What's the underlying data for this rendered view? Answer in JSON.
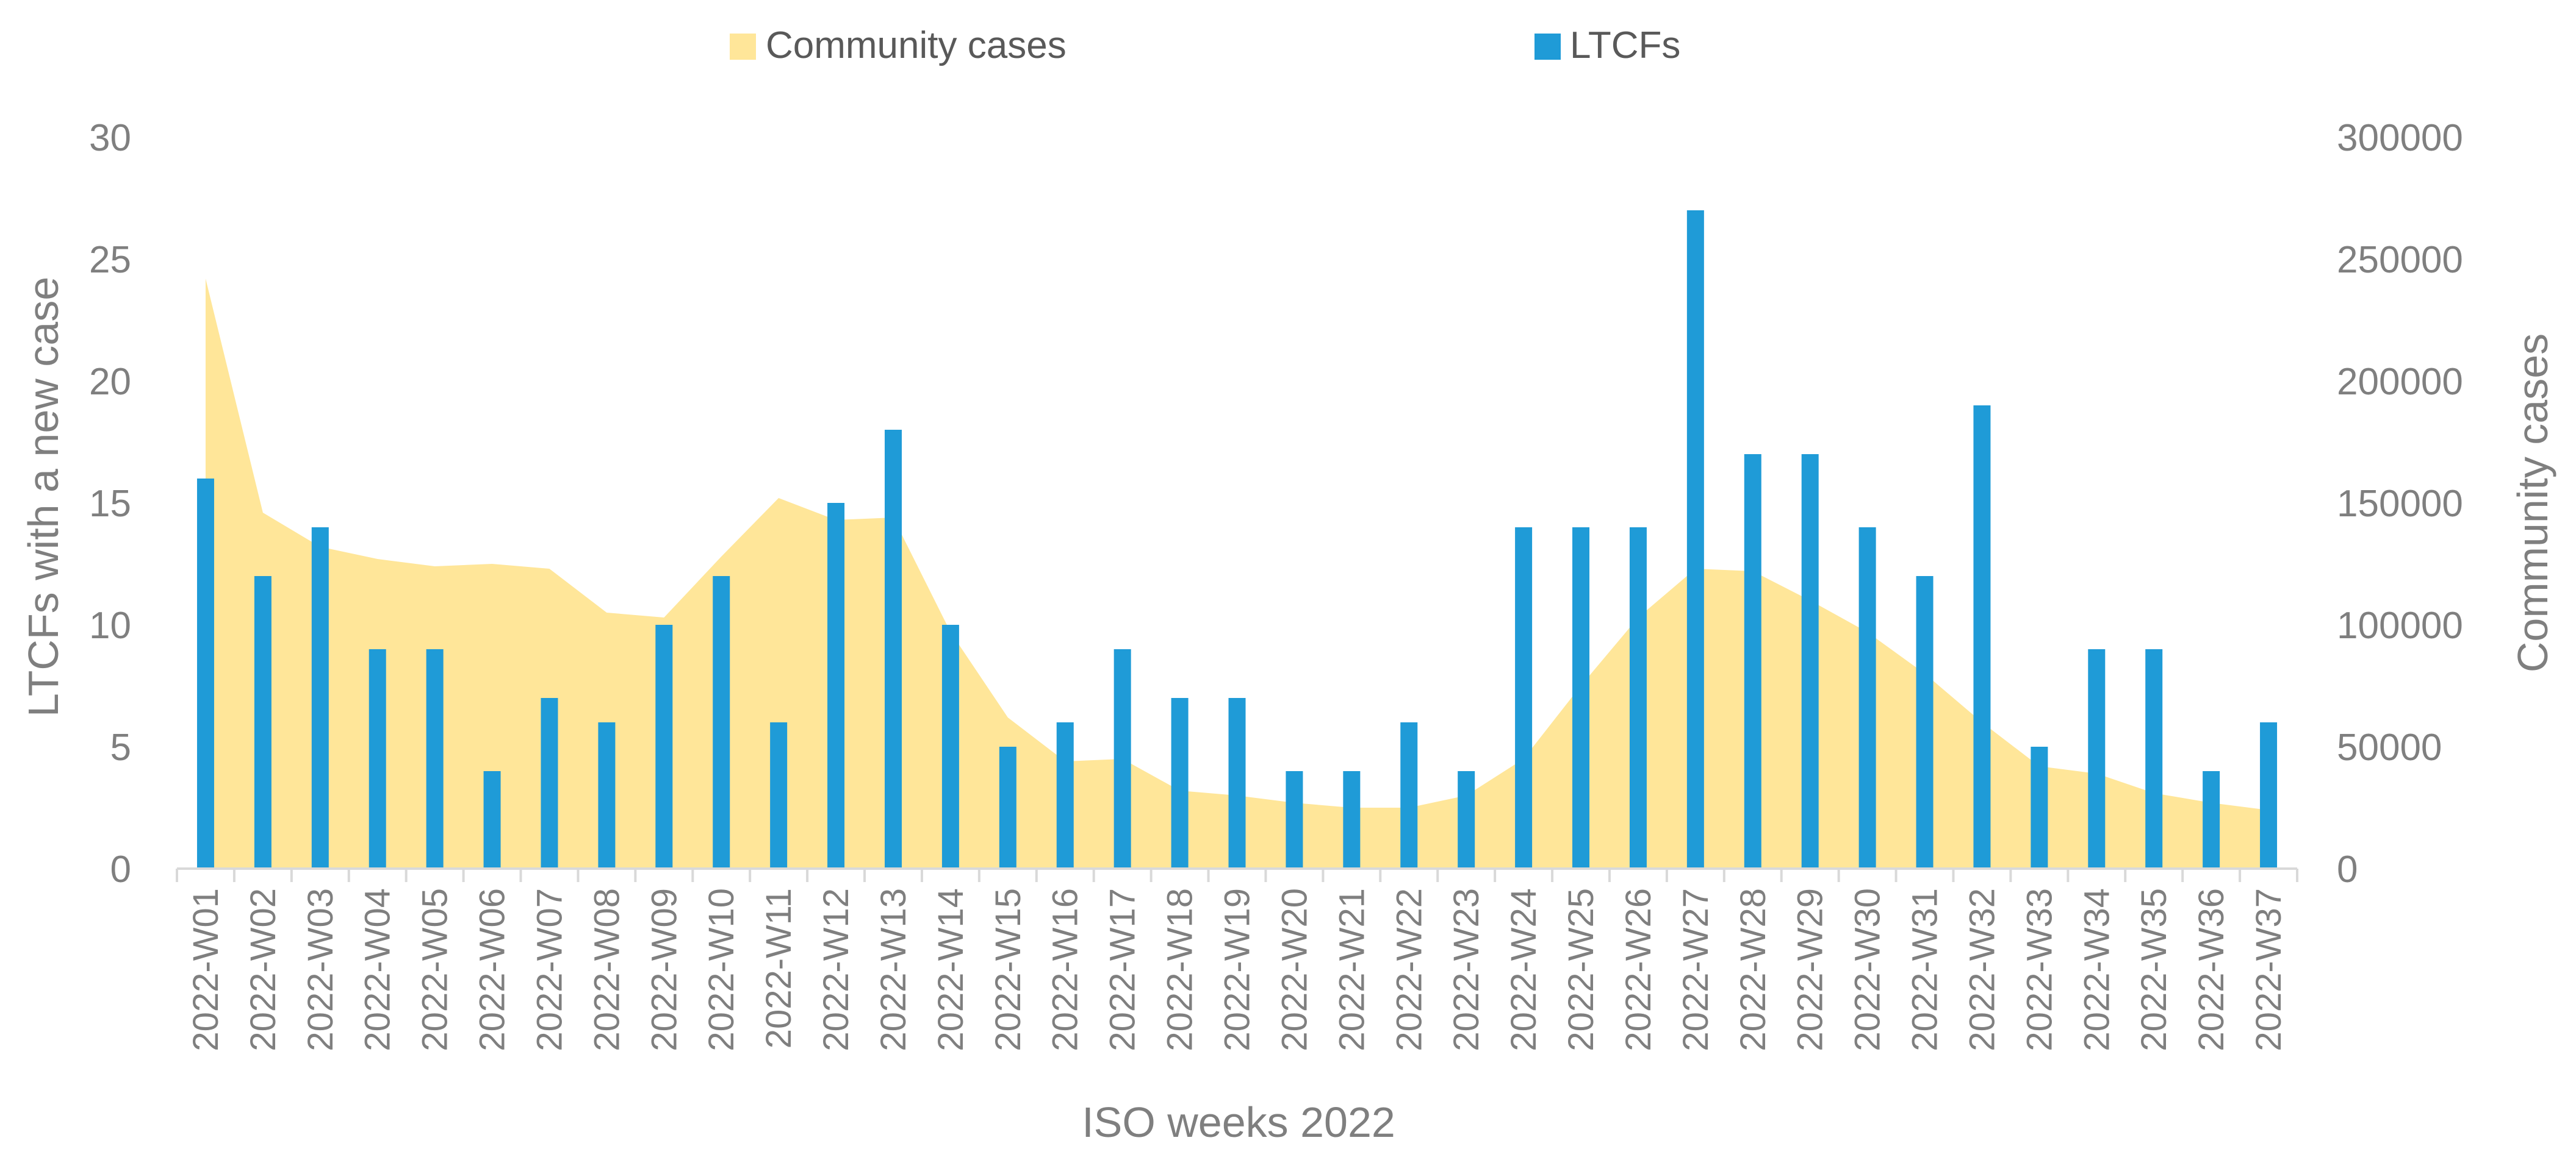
{
  "chart_data": {
    "type": "bar",
    "title": "",
    "xlabel": "ISO weeks 2022",
    "ylabel": "LTCFs with a new case",
    "y2label": "Community cases",
    "ylim": [
      0,
      30
    ],
    "y2lim": [
      0,
      300000
    ],
    "yticks": [
      "0",
      "5",
      "10",
      "15",
      "20",
      "25",
      "30"
    ],
    "y2ticks": [
      "0",
      "50000",
      "100000",
      "150000",
      "200000",
      "250000",
      "300000"
    ],
    "legend_position": "top-center",
    "grid": false,
    "categories": [
      "2022-W01",
      "2022-W02",
      "2022-W03",
      "2022-W04",
      "2022-W05",
      "2022-W06",
      "2022-W07",
      "2022-W08",
      "2022-W09",
      "2022-W10",
      "2022-W11",
      "2022-W12",
      "2022-W13",
      "2022-W14",
      "2022-W15",
      "2022-W16",
      "2022-W17",
      "2022-W18",
      "2022-W19",
      "2022-W20",
      "2022-W21",
      "2022-W22",
      "2022-W23",
      "2022-W24",
      "2022-W25",
      "2022-W26",
      "2022-W27",
      "2022-W28",
      "2022-W29",
      "2022-W30",
      "2022-W31",
      "2022-W32",
      "2022-W33",
      "2022-W34",
      "2022-W35",
      "2022-W36",
      "2022-W37"
    ],
    "series": [
      {
        "name": "Community cases",
        "type": "area",
        "axis": "right",
        "color": "#FFE699",
        "values": [
          242000,
          146000,
          132000,
          127000,
          124000,
          125000,
          123000,
          105000,
          103000,
          128000,
          152000,
          143000,
          144000,
          97000,
          62000,
          44000,
          45000,
          32000,
          30000,
          27000,
          25000,
          25000,
          30000,
          45000,
          75000,
          103000,
          123000,
          122000,
          110000,
          97000,
          80000,
          60000,
          42000,
          39000,
          31000,
          27000,
          24000
        ]
      },
      {
        "name": "LTCFs",
        "type": "bar",
        "axis": "left",
        "color": "#1F9BD7",
        "values": [
          16,
          12,
          14,
          9,
          9,
          4,
          7,
          6,
          10,
          12,
          6,
          15,
          18,
          10,
          5,
          6,
          9,
          7,
          7,
          4,
          4,
          6,
          4,
          14,
          14,
          14,
          27,
          17,
          17,
          14,
          12,
          19,
          5,
          9,
          9,
          4,
          6
        ]
      }
    ]
  }
}
